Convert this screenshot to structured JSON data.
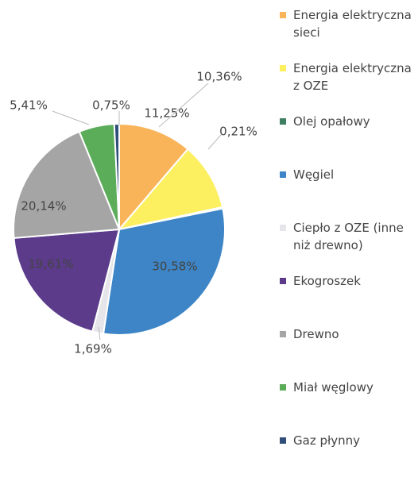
{
  "chart_data": {
    "type": "pie",
    "categories": [
      "Energia elektryczna sieci",
      "Energia elektryczna z OZE",
      "Olej opałowy",
      "Węgiel",
      "Ciepło z OZE (inne niż drewno)",
      "Ekogroszek",
      "Drewno",
      "Miał węglowy",
      "Gaz płynny"
    ],
    "values": [
      11.25,
      10.36,
      0.21,
      30.58,
      1.69,
      19.61,
      20.14,
      5.41,
      0.75
    ],
    "value_labels": [
      "11,25%",
      "10,36%",
      "0,21%",
      "30,58%",
      "1,69%",
      "19,61%",
      "20,14%",
      "5,41%",
      "0,75%"
    ],
    "colors": [
      "#f9b45a",
      "#fcf060",
      "#3e7f61",
      "#3d85c6",
      "#e6e6ea",
      "#5b3b8a",
      "#a5a5a5",
      "#5cad5a",
      "#2f4e7a"
    ],
    "legend": "right"
  }
}
